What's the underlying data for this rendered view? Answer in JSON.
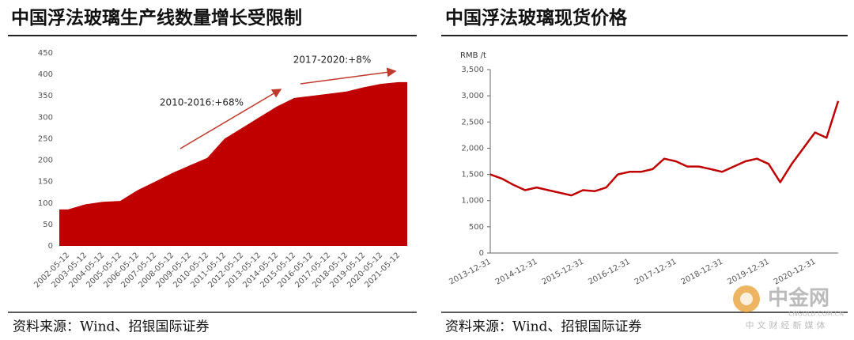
{
  "chart_data": [
    {
      "type": "area",
      "title": "中国浮法玻璃生产线数量增长受限制",
      "categories": [
        "2002-05-12",
        "2003-05-12",
        "2004-05-12",
        "2005-05-12",
        "2006-05-12",
        "2007-05-12",
        "2008-05-12",
        "2009-05-12",
        "2010-05-12",
        "2011-05-12",
        "2012-05-12",
        "2013-05-12",
        "2014-05-12",
        "2015-05-12",
        "2016-05-12",
        "2017-05-12",
        "2018-05-12",
        "2019-05-12",
        "2020-05-12",
        "2021-05-12"
      ],
      "values": [
        85,
        97,
        103,
        105,
        130,
        150,
        170,
        188,
        205,
        250,
        275,
        300,
        325,
        345,
        350,
        355,
        360,
        370,
        378,
        382
      ],
      "color": "#c00000",
      "ylim": [
        0,
        450
      ],
      "yticks": [
        0,
        50,
        100,
        150,
        200,
        250,
        300,
        350,
        400,
        450
      ],
      "annotations": [
        "2010-2016:+68%",
        "2017-2020:+8%"
      ],
      "source": "资料来源：Wind、招银国际证券"
    },
    {
      "type": "line",
      "title": "中国浮法玻璃现货价格",
      "y_label": "RMB /t",
      "categories": [
        "2013-12-31",
        null,
        null,
        null,
        "2014-12-31",
        null,
        null,
        null,
        "2015-12-31",
        null,
        null,
        null,
        "2016-12-31",
        null,
        null,
        null,
        "2017-12-31",
        null,
        null,
        null,
        "2018-12-31",
        null,
        null,
        null,
        "2019-12-31",
        null,
        null,
        null,
        "2020-12-31",
        null,
        null
      ],
      "values": [
        1500,
        1420,
        1300,
        1200,
        1250,
        1200,
        1150,
        1100,
        1200,
        1180,
        1250,
        1500,
        1550,
        1550,
        1600,
        1800,
        1750,
        1650,
        1650,
        1600,
        1550,
        1650,
        1750,
        1800,
        1700,
        1350,
        1700,
        2000,
        2300,
        2200,
        2900
      ],
      "color": "#c00000",
      "ylim": [
        0,
        3500
      ],
      "yticks": [
        0,
        500,
        {
          "value": 1000,
          "label": "1,000"
        },
        {
          "value": 1500,
          "label": "1,500"
        },
        {
          "value": 2000,
          "label": "2,000"
        },
        {
          "value": 2500,
          "label": "2,500"
        },
        {
          "value": 3000,
          "label": "3,000"
        },
        {
          "value": 3500,
          "label": "3,500"
        }
      ],
      "source": "资料来源：Wind、招银国际证券"
    }
  ],
  "watermark": {
    "name": "中金网",
    "url": "CNGOLD.COM.CN",
    "tagline": "中文财经新媒体"
  }
}
